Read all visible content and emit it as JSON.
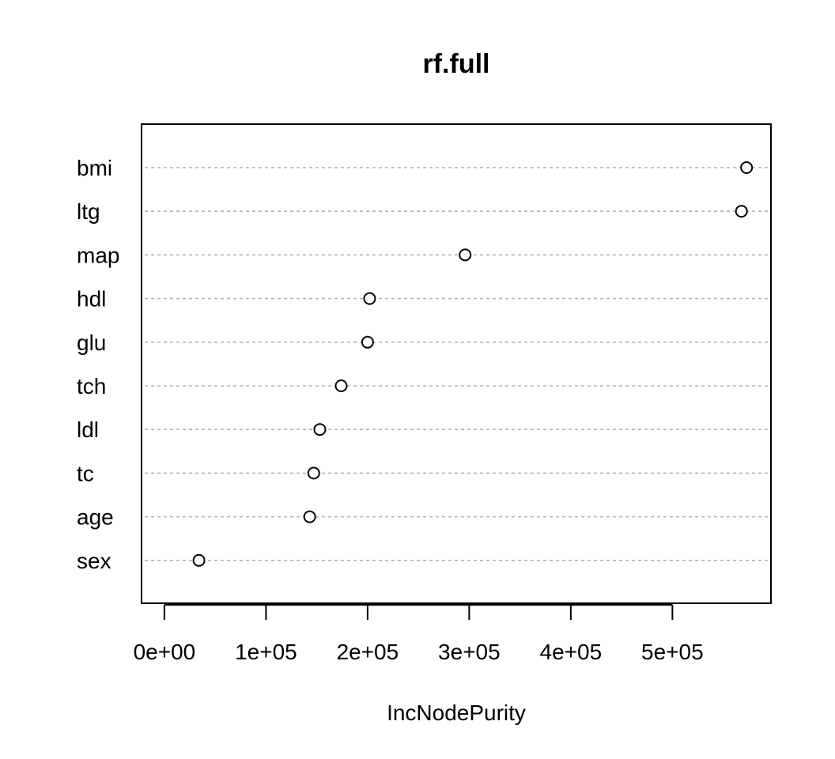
{
  "chart_data": {
    "type": "scatter",
    "title": "rf.full",
    "xlabel": "IncNodePurity",
    "ylabel": "",
    "categories": [
      "bmi",
      "ltg",
      "map",
      "hdl",
      "glu",
      "tch",
      "ldl",
      "tc",
      "age",
      "sex"
    ],
    "values": [
      573000,
      568000,
      296000,
      202000,
      200000,
      174000,
      153000,
      147000,
      143000,
      34000
    ],
    "x_ticks": [
      0,
      100000,
      200000,
      300000,
      400000,
      500000
    ],
    "x_tick_labels": [
      "0e+00",
      "1e+05",
      "2e+05",
      "3e+05",
      "4e+05",
      "5e+05"
    ],
    "xlim": [
      -22500,
      597000
    ],
    "grid": "horizontal dashed guide per category",
    "legend": "none",
    "colors": {
      "point_fill": "#ffffff",
      "point_stroke": "#000000",
      "guide": "#b3b3b3"
    }
  }
}
